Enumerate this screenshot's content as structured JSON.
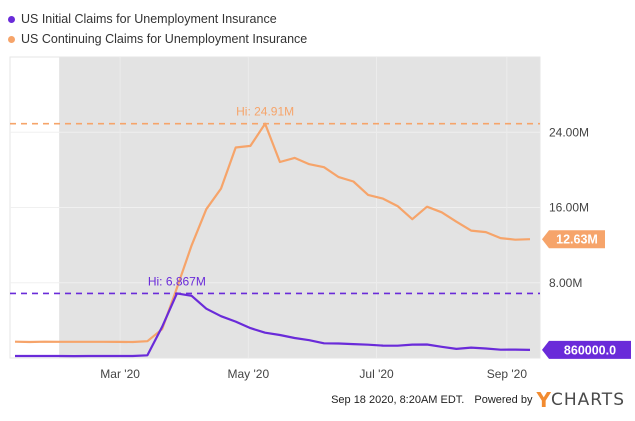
{
  "chart_data": {
    "type": "line",
    "x": [
      "2020-01-11",
      "2020-01-18",
      "2020-01-25",
      "2020-02-01",
      "2020-02-08",
      "2020-02-15",
      "2020-02-22",
      "2020-02-29",
      "2020-03-07",
      "2020-03-14",
      "2020-03-21",
      "2020-03-28",
      "2020-04-04",
      "2020-04-11",
      "2020-04-18",
      "2020-04-25",
      "2020-05-02",
      "2020-05-09",
      "2020-05-16",
      "2020-05-23",
      "2020-05-30",
      "2020-06-06",
      "2020-06-13",
      "2020-06-20",
      "2020-06-27",
      "2020-07-04",
      "2020-07-11",
      "2020-07-18",
      "2020-07-25",
      "2020-08-01",
      "2020-08-08",
      "2020-08-15",
      "2020-08-22",
      "2020-08-29",
      "2020-09-05",
      "2020-09-12"
    ],
    "x_ticks": [
      "Mar '20",
      "May '20",
      "Jul '20",
      "Sep '20"
    ],
    "x_tick_dates": [
      "2020-03-01",
      "2020-05-01",
      "2020-07-01",
      "2020-09-01"
    ],
    "y_ticks": [
      "8.00M",
      "16.00M",
      "24.00M"
    ],
    "y_tick_values": [
      8000000,
      16000000,
      24000000
    ],
    "ylim": [
      0,
      32000000
    ],
    "grid": true,
    "shaded_start": "2020-02-01",
    "series": [
      {
        "name": "US Initial Claims for Unemployment Insurance",
        "color": "#6a2bd9",
        "values": [
          210000,
          211000,
          212000,
          210000,
          205000,
          212000,
          215000,
          217000,
          211000,
          282000,
          3307000,
          6867000,
          6615000,
          5237000,
          4442000,
          3867000,
          3176000,
          2687000,
          2446000,
          2123000,
          1897000,
          1566000,
          1540000,
          1482000,
          1413000,
          1314000,
          1310000,
          1422000,
          1434000,
          1186000,
          963000,
          1104000,
          1011000,
          884000,
          893000,
          860000
        ],
        "high_label": "Hi: 6.867M",
        "last_label": "860000.0"
      },
      {
        "name": "US Continuing Claims for Unemployment Insurance",
        "color": "#f6a46a",
        "values": [
          1735000,
          1703000,
          1730000,
          1719000,
          1726000,
          1724000,
          1720000,
          1710000,
          1702000,
          1784000,
          3059000,
          7446000,
          11976000,
          15819000,
          18011000,
          22377000,
          22548000,
          24912000,
          20838000,
          21268000,
          20606000,
          20289000,
          19231000,
          18760000,
          17338000,
          16951000,
          16151000,
          14759000,
          16090000,
          15486000,
          14492000,
          13544000,
          13385000,
          12747000,
          12580000,
          12628000
        ],
        "high_label": "Hi: 24.91M",
        "last_label": "12.63M"
      }
    ]
  },
  "footer": {
    "timestamp": "Sep 18 2020, 8:20AM EDT.",
    "powered_by": "Powered by",
    "brand_y": "Y",
    "brand_rest": "CHARTS"
  }
}
